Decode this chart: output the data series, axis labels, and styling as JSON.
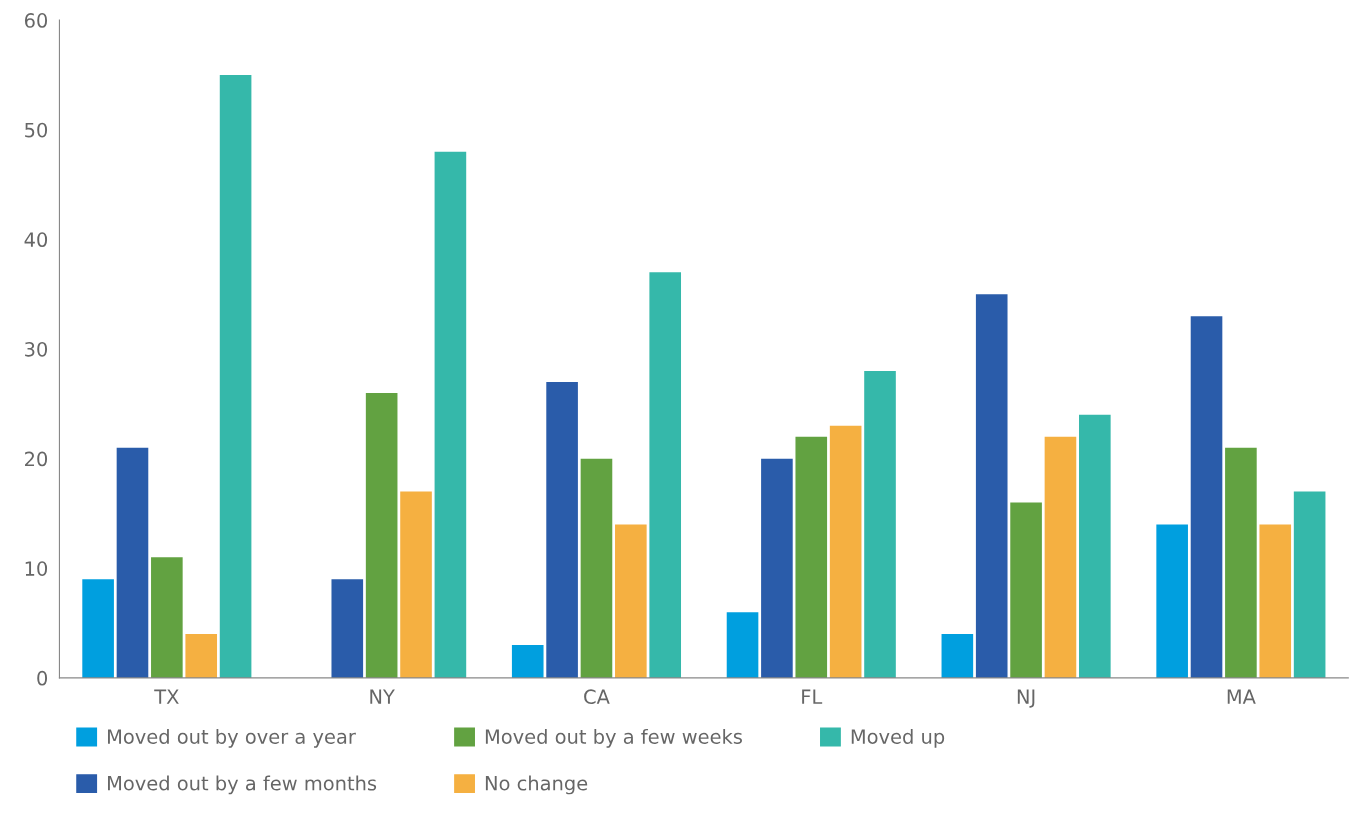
{
  "chart_data": {
    "type": "bar",
    "categories": [
      "TX",
      "NY",
      "CA",
      "FL",
      "NJ",
      "MA"
    ],
    "series": [
      {
        "name": "Moved out by over a year",
        "color": "#009fdf",
        "values": [
          9,
          0,
          3,
          6,
          4,
          14
        ]
      },
      {
        "name": "Moved out by a few months",
        "color": "#2a5caa",
        "values": [
          21,
          9,
          27,
          20,
          35,
          33
        ]
      },
      {
        "name": "Moved out by a few weeks",
        "color": "#62a241",
        "values": [
          11,
          26,
          20,
          22,
          16,
          21
        ]
      },
      {
        "name": "No change",
        "color": "#f5b041",
        "values": [
          4,
          17,
          14,
          23,
          22,
          14
        ]
      },
      {
        "name": "Moved up",
        "color": "#35b8aa",
        "values": [
          55,
          48,
          37,
          28,
          24,
          17
        ]
      }
    ],
    "ylim": [
      0,
      60
    ],
    "yticks": [
      0,
      10,
      20,
      30,
      40,
      50,
      60
    ],
    "grid": false,
    "legend": "bottom"
  }
}
